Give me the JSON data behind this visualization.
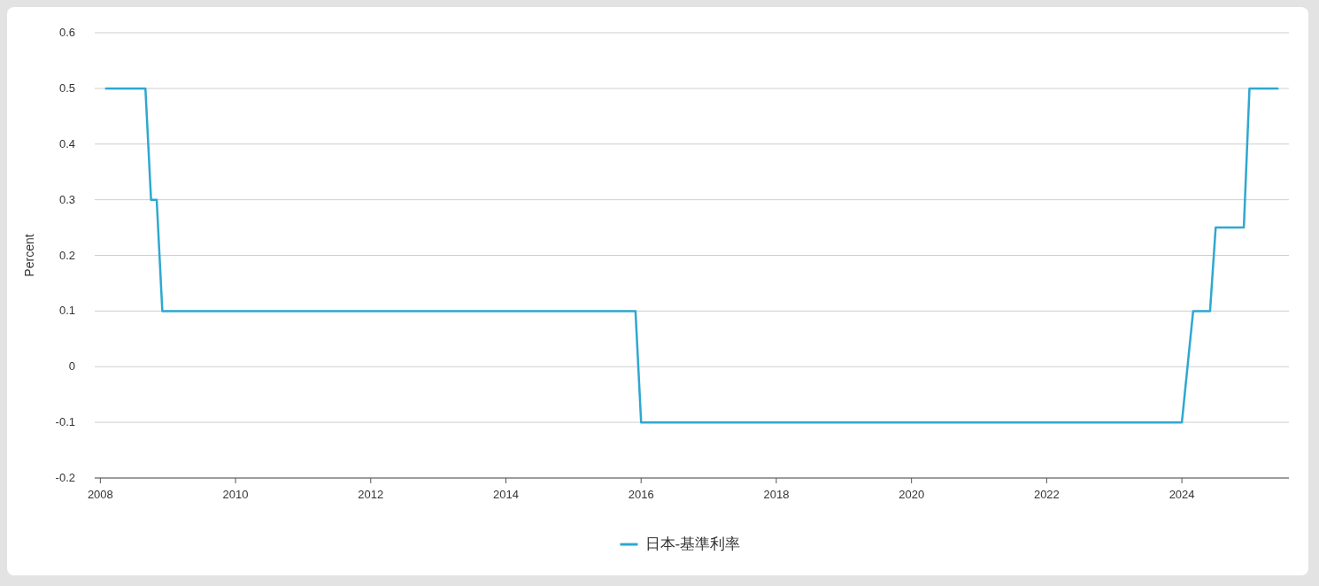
{
  "chart_data": {
    "type": "line",
    "ylabel": "Percent",
    "x": [
      "2008-02",
      "2008-09",
      "2008-10",
      "2008-11",
      "2008-12",
      "2015-12",
      "2016-01",
      "2024-01",
      "2024-03",
      "2024-06",
      "2024-07",
      "2024-12",
      "2025-01",
      "2025-06"
    ],
    "series": [
      {
        "name": "日本-基準利率",
        "color": "#2ea8d0",
        "values": [
          0.5,
          0.5,
          0.3,
          0.3,
          0.1,
          0.1,
          -0.1,
          -0.1,
          0.1,
          0.1,
          0.25,
          0.25,
          0.5,
          0.5
        ]
      }
    ],
    "xlim": [
      "2007-12",
      "2025-08"
    ],
    "xticks": [
      "2008",
      "2010",
      "2012",
      "2014",
      "2016",
      "2018",
      "2020",
      "2022",
      "2024"
    ],
    "ylim": [
      -0.2,
      0.6
    ],
    "yticks": [
      -0.2,
      -0.1,
      0,
      0.1,
      0.2,
      0.3,
      0.4,
      0.5,
      0.6
    ],
    "grid": "y",
    "legend": "bottom"
  }
}
